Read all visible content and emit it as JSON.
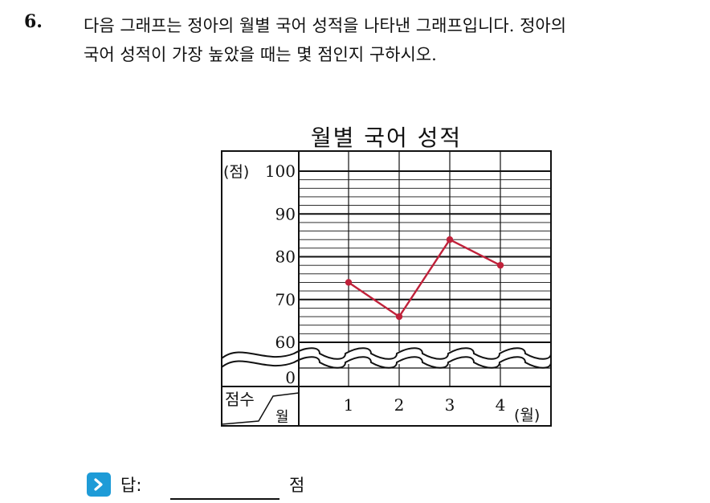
{
  "question": {
    "number": "6.",
    "line1": "다음 그래프는 정아의 월별 국어 성적을 나타낸 그래프입니다. 정아의",
    "line2": "국어 성적이 가장 높았을 때는 몇 점인지 구하시오."
  },
  "chart_data": {
    "type": "line",
    "title": "월별 국어 성적",
    "y_unit": "(점)",
    "x_unit": "(월)",
    "corner_top": "점수",
    "corner_bottom": "월",
    "categories": [
      "1",
      "2",
      "3",
      "4"
    ],
    "values": [
      74,
      66,
      84,
      78
    ],
    "y_ticks": [
      "100",
      "90",
      "80",
      "70",
      "60",
      "0"
    ],
    "ylim": [
      60,
      100
    ],
    "y_minor_step": 2,
    "axis_break": true,
    "line_color": "#c0213a"
  },
  "answer": {
    "label": "답:",
    "unit": "점",
    "icon": "chevron-right-icon",
    "icon_color": "#1e9bd7"
  }
}
